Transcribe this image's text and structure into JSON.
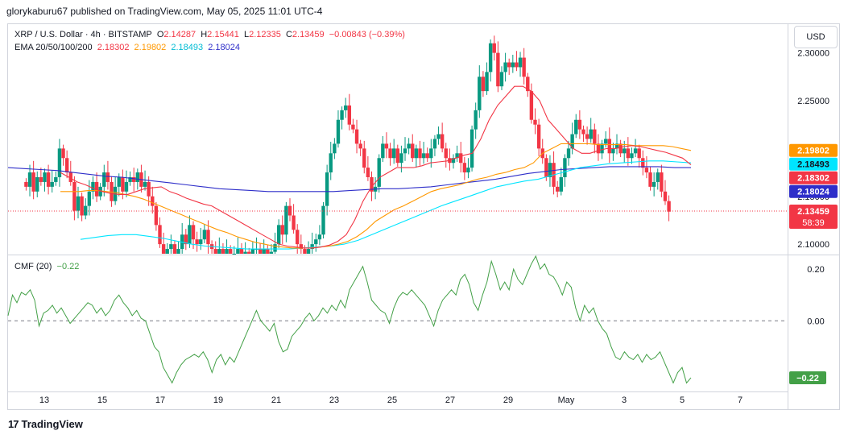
{
  "header": {
    "publisher_text": "glorykaburu67 published on TradingView.com, May 05, 2025 11:01 UTC-4"
  },
  "legend": {
    "symbol": "XRP / U.S. Dollar · 4h · BITSTAMP",
    "o_label": "O",
    "o_value": "2.14287",
    "h_label": "H",
    "h_value": "2.15441",
    "l_label": "L",
    "l_value": "2.12335",
    "c_label": "C",
    "c_value": "2.13459",
    "change": "−0.00843 (−0.39%)",
    "ema_label": "EMA 20/50/100/200",
    "ema_values": [
      "2.18302",
      "2.19802",
      "2.18493",
      "2.18024"
    ],
    "cmf_label": "CMF (20)",
    "cmf_value": "−0.22"
  },
  "currency_button": "USD",
  "footer": {
    "brand": "TradingView"
  },
  "colors": {
    "up": "#089981",
    "down": "#f23645",
    "ema20": "#f23645",
    "ema50": "#ff9800",
    "ema100": "#00e5ff",
    "ema200": "#2e2ec9",
    "cmf": "#43a047"
  },
  "chart_data": [
    {
      "type": "candlestick",
      "title": "XRP / U.S. Dollar · 4h · BITSTAMP",
      "x_ticks": [
        "13",
        "15",
        "17",
        "19",
        "21",
        "23",
        "25",
        "27",
        "29",
        "May",
        "3",
        "5",
        "7"
      ],
      "y_ticks": [
        "2.30000",
        "2.25000",
        "2.20000",
        "2.15000",
        "2.10000"
      ],
      "ylim": [
        2.09,
        2.33
      ],
      "price_labels": [
        {
          "text": "2.19802",
          "value": 2.19802,
          "color": "#ff9800"
        },
        {
          "text": "2.18493",
          "value": 2.18493,
          "color": "#00e5ff"
        },
        {
          "text": "2.18302",
          "value": 2.18302,
          "color": "#f23645"
        },
        {
          "text": "2.18024",
          "value": 2.18024,
          "color": "#2e2ec9"
        },
        {
          "text": "2.13459",
          "value": 2.13459,
          "color": "#f23645",
          "sub": "58:39"
        }
      ],
      "close": [
        2.16,
        2.175,
        2.155,
        2.17,
        2.165,
        2.175,
        2.16,
        2.165,
        2.17,
        2.2,
        2.19,
        2.175,
        2.165,
        2.135,
        2.15,
        2.13,
        2.14,
        2.155,
        2.165,
        2.15,
        2.16,
        2.175,
        2.165,
        2.145,
        2.16,
        2.17,
        2.155,
        2.165,
        2.17,
        2.165,
        2.175,
        2.16,
        2.165,
        2.15,
        2.14,
        2.12,
        2.1,
        2.09,
        2.095,
        2.1,
        2.09,
        2.095,
        2.11,
        2.1,
        2.12,
        2.105,
        2.1,
        2.105,
        2.115,
        2.1,
        2.095,
        2.09,
        2.095,
        2.09,
        2.095,
        2.09,
        2.09,
        2.095,
        2.09,
        2.092,
        2.09,
        2.095,
        2.095,
        2.09,
        2.095,
        2.09,
        2.092,
        2.1,
        2.12,
        2.11,
        2.14,
        2.13,
        2.115,
        2.1,
        2.095,
        2.09,
        2.095,
        2.1,
        2.105,
        2.11,
        2.14,
        2.175,
        2.195,
        2.205,
        2.23,
        2.24,
        2.245,
        2.225,
        2.22,
        2.205,
        2.2,
        2.18,
        2.17,
        2.155,
        2.16,
        2.19,
        2.205,
        2.2,
        2.19,
        2.2,
        2.185,
        2.195,
        2.2,
        2.205,
        2.19,
        2.2,
        2.19,
        2.195,
        2.19,
        2.2,
        2.21,
        2.215,
        2.2,
        2.19,
        2.185,
        2.19,
        2.195,
        2.185,
        2.175,
        2.18,
        2.22,
        2.24,
        2.275,
        2.26,
        2.28,
        2.31,
        2.3,
        2.265,
        2.28,
        2.29,
        2.285,
        2.29,
        2.285,
        2.295,
        2.275,
        2.26,
        2.23,
        2.225,
        2.2,
        2.19,
        2.17,
        2.185,
        2.16,
        2.155,
        2.17,
        2.19,
        2.2,
        2.215,
        2.23,
        2.22,
        2.215,
        2.21,
        2.22,
        2.205,
        2.195,
        2.205,
        2.21,
        2.195,
        2.2,
        2.205,
        2.195,
        2.2,
        2.19,
        2.195,
        2.2,
        2.19,
        2.18,
        2.175,
        2.16,
        2.165,
        2.175,
        2.155,
        2.145,
        2.134
      ],
      "ema20": [
        2.175,
        2.17,
        2.165,
        2.162,
        2.158,
        2.155,
        2.153,
        2.152,
        2.152,
        2.155,
        2.158,
        2.159,
        2.16,
        2.155,
        2.152,
        2.148,
        2.145,
        2.142,
        2.14,
        2.135,
        2.13,
        2.125,
        2.12,
        2.115,
        2.11,
        2.105,
        2.1,
        2.098,
        2.097,
        2.096,
        2.096,
        2.097,
        2.099,
        2.103,
        2.11,
        2.125,
        2.145,
        2.16,
        2.17,
        2.175,
        2.18,
        2.18,
        2.18,
        2.182,
        2.185,
        2.186,
        2.187,
        2.19,
        2.193,
        2.195,
        2.21,
        2.23,
        2.245,
        2.255,
        2.265,
        2.265,
        2.26,
        2.25,
        2.23,
        2.22,
        2.21,
        2.2,
        2.195,
        2.195,
        2.198,
        2.2,
        2.2,
        2.202,
        2.203,
        2.202,
        2.2,
        2.198,
        2.196,
        2.193,
        2.19,
        2.183
      ],
      "ema50": [
        2.155,
        2.155,
        2.155,
        2.156,
        2.156,
        2.155,
        2.154,
        2.152,
        2.15,
        2.147,
        2.143,
        2.139,
        2.135,
        2.131,
        2.127,
        2.123,
        2.119,
        2.115,
        2.112,
        2.108,
        2.105,
        2.102,
        2.1,
        2.098,
        2.097,
        2.096,
        2.096,
        2.096,
        2.097,
        2.098,
        2.1,
        2.103,
        2.108,
        2.115,
        2.124,
        2.13,
        2.136,
        2.14,
        2.145,
        2.15,
        2.155,
        2.158,
        2.16,
        2.162,
        2.165,
        2.168,
        2.17,
        2.173,
        2.175,
        2.178,
        2.18,
        2.185,
        2.195,
        2.2,
        2.205,
        2.205,
        2.205,
        2.205,
        2.204,
        2.204,
        2.204,
        2.204,
        2.203,
        2.203,
        2.203,
        2.203,
        2.202,
        2.2,
        2.198
      ],
      "ema100": [
        2.105,
        2.107,
        2.109,
        2.11,
        2.11,
        2.108,
        2.106,
        2.103,
        2.1,
        2.098,
        2.097,
        2.096,
        2.095,
        2.095,
        2.095,
        2.095,
        2.096,
        2.097,
        2.098,
        2.1,
        2.104,
        2.11,
        2.116,
        2.122,
        2.128,
        2.134,
        2.14,
        2.145,
        2.15,
        2.155,
        2.16,
        2.163,
        2.166,
        2.168,
        2.172,
        2.176,
        2.18,
        2.182,
        2.184,
        2.185,
        2.186,
        2.187,
        2.187,
        2.186,
        2.185
      ],
      "ema200": [
        2.18,
        2.179,
        2.178,
        2.177,
        2.175,
        2.173,
        2.171,
        2.17,
        2.168,
        2.166,
        2.164,
        2.162,
        2.16,
        2.158,
        2.157,
        2.156,
        2.155,
        2.155,
        2.155,
        2.155,
        2.155,
        2.156,
        2.157,
        2.158,
        2.158,
        2.159,
        2.16,
        2.162,
        2.164,
        2.166,
        2.168,
        2.171,
        2.174,
        2.176,
        2.178,
        2.179,
        2.18,
        2.181,
        2.181,
        2.181,
        2.181,
        2.18,
        2.18
      ]
    },
    {
      "type": "line",
      "title": "CMF (20)",
      "y_ticks": [
        "0.20",
        "0.00"
      ],
      "ylim": [
        -0.27,
        0.25
      ],
      "zero_line": true,
      "last_value_label": "−0.22",
      "values": [
        0.02,
        0.1,
        0.07,
        0.11,
        0.1,
        0.12,
        0.08,
        -0.02,
        0.03,
        0.04,
        0.06,
        0.03,
        0.05,
        0.02,
        -0.01,
        0.01,
        0.03,
        0.05,
        0.07,
        0.06,
        0.03,
        0.05,
        0.02,
        0.04,
        0.08,
        0.1,
        0.07,
        0.05,
        0.02,
        0.04,
        0.01,
        0.0,
        -0.05,
        -0.1,
        -0.12,
        -0.18,
        -0.21,
        -0.24,
        -0.2,
        -0.17,
        -0.15,
        -0.14,
        -0.13,
        -0.14,
        -0.12,
        -0.15,
        -0.2,
        -0.15,
        -0.13,
        -0.17,
        -0.14,
        -0.16,
        -0.12,
        -0.08,
        -0.04,
        0.0,
        0.04,
        0.0,
        -0.02,
        -0.04,
        -0.01,
        -0.08,
        -0.12,
        -0.11,
        -0.06,
        -0.04,
        -0.02,
        0.01,
        0.03,
        0.0,
        0.02,
        0.05,
        0.03,
        0.06,
        0.04,
        0.08,
        0.05,
        0.12,
        0.15,
        0.18,
        0.21,
        0.15,
        0.08,
        0.06,
        0.04,
        0.03,
        -0.01,
        0.05,
        0.09,
        0.11,
        0.1,
        0.12,
        0.1,
        0.08,
        0.06,
        0.02,
        -0.02,
        0.04,
        0.08,
        0.1,
        0.12,
        0.1,
        0.16,
        0.18,
        0.14,
        0.07,
        0.04,
        0.1,
        0.15,
        0.23,
        0.18,
        0.12,
        0.15,
        0.12,
        0.2,
        0.16,
        0.14,
        0.18,
        0.22,
        0.25,
        0.2,
        0.22,
        0.18,
        0.17,
        0.14,
        0.1,
        0.15,
        0.13,
        0.05,
        0.0,
        0.06,
        0.03,
        0.05,
        0.0,
        -0.03,
        -0.05,
        -0.1,
        -0.14,
        -0.15,
        -0.12,
        -0.14,
        -0.15,
        -0.13,
        -0.16,
        -0.13,
        -0.15,
        -0.14,
        -0.12,
        -0.16,
        -0.2,
        -0.24,
        -0.2,
        -0.18,
        -0.24,
        -0.22
      ]
    }
  ]
}
